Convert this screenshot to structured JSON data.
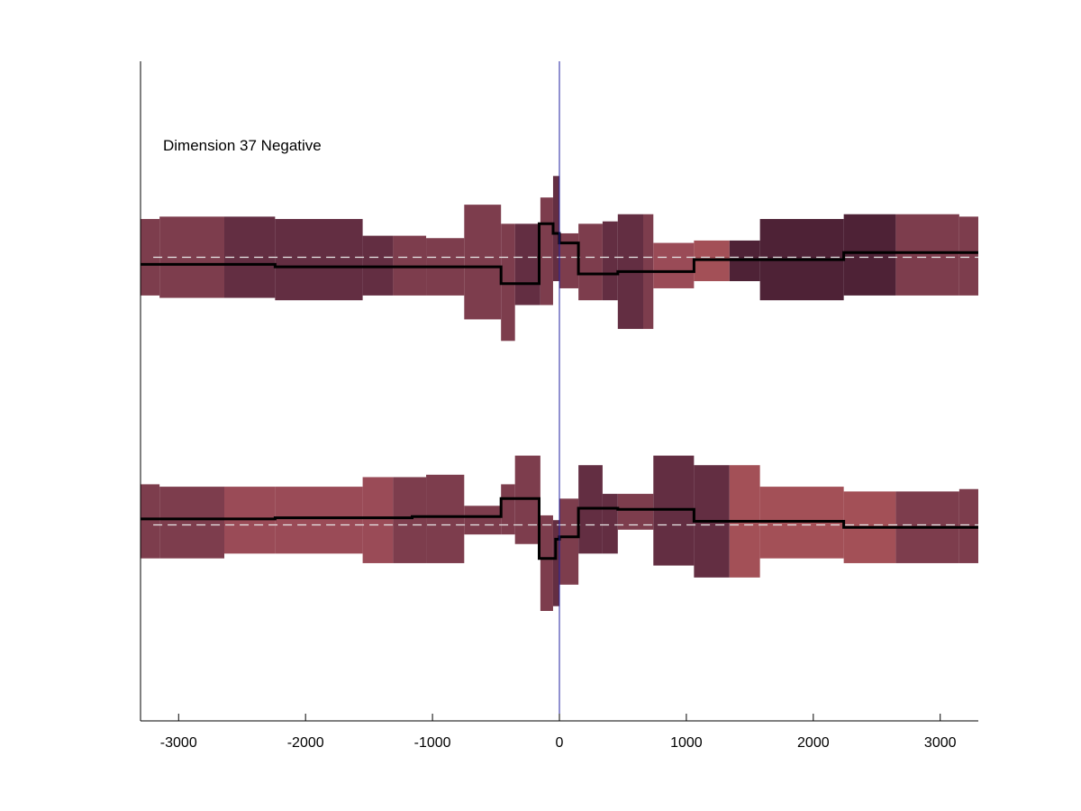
{
  "chart_data": {
    "type": "area",
    "title": "",
    "annotation": "Dimension 37 Negative",
    "xlabel": "",
    "ylabel": "",
    "xlim": [
      -3300,
      3300
    ],
    "xticks": [
      -3000,
      -2000,
      -1000,
      0,
      1000,
      2000,
      3000
    ],
    "xtick_labels": [
      "-3000",
      "-2000",
      "-1000",
      "0",
      "1000",
      "2000",
      "3000"
    ],
    "vertical_line": {
      "x": 0,
      "color": "#2020a0"
    },
    "grid": false,
    "legend": "none",
    "panels": [
      {
        "name": "",
        "baseline": 0,
        "ylim": [
          -5.6,
          8.2
        ],
        "bands": [
          {
            "x0": -3300,
            "x1": -3150,
            "low": -1.6,
            "high": 1.6,
            "color": "#7d3d4d"
          },
          {
            "x0": -3150,
            "x1": -2640,
            "low": -1.7,
            "high": 1.7,
            "color": "#7d3d4d"
          },
          {
            "x0": -2640,
            "x1": -2240,
            "low": -1.7,
            "high": 1.7,
            "color": "#632e42"
          },
          {
            "x0": -2240,
            "x1": -1550,
            "low": -1.8,
            "high": 1.6,
            "color": "#632e42"
          },
          {
            "x0": -1550,
            "x1": -1310,
            "low": -1.6,
            "high": 0.9,
            "color": "#632e42"
          },
          {
            "x0": -1310,
            "x1": -1050,
            "low": -1.6,
            "high": 0.9,
            "color": "#7d3d4d"
          },
          {
            "x0": -1050,
            "x1": -750,
            "low": -1.6,
            "high": 0.8,
            "color": "#7d3d4d"
          },
          {
            "x0": -750,
            "x1": -460,
            "low": -2.6,
            "high": 2.2,
            "color": "#7d3d4d"
          },
          {
            "x0": -460,
            "x1": -350,
            "low": -3.5,
            "high": 1.4,
            "color": "#7d3d4d"
          },
          {
            "x0": -350,
            "x1": -150,
            "low": -2.0,
            "high": 1.4,
            "color": "#632e42"
          },
          {
            "x0": -150,
            "x1": -50,
            "low": -2.0,
            "high": 2.5,
            "color": "#7d3d4d"
          },
          {
            "x0": -50,
            "x1": 0,
            "low": -1.0,
            "high": 3.4,
            "color": "#632e42"
          },
          {
            "x0": 0,
            "x1": 150,
            "low": -1.3,
            "high": 1.0,
            "color": "#7d3d4d"
          },
          {
            "x0": 150,
            "x1": 340,
            "low": -1.8,
            "high": 1.4,
            "color": "#7d3d4d"
          },
          {
            "x0": 340,
            "x1": 460,
            "low": -1.8,
            "high": 1.5,
            "color": "#632e42"
          },
          {
            "x0": 460,
            "x1": 660,
            "low": -3.0,
            "high": 1.8,
            "color": "#632e42"
          },
          {
            "x0": 660,
            "x1": 740,
            "low": -3.0,
            "high": 1.8,
            "color": "#7d3d4d"
          },
          {
            "x0": 740,
            "x1": 1060,
            "low": -1.3,
            "high": 0.6,
            "color": "#9a4b57"
          },
          {
            "x0": 1060,
            "x1": 1340,
            "low": -1.0,
            "high": 0.7,
            "color": "#a35057"
          },
          {
            "x0": 1340,
            "x1": 1580,
            "low": -1.0,
            "high": 0.7,
            "color": "#4e2236"
          },
          {
            "x0": 1580,
            "x1": 2240,
            "low": -1.8,
            "high": 1.6,
            "color": "#4e2236"
          },
          {
            "x0": 2240,
            "x1": 2650,
            "low": -1.6,
            "high": 1.8,
            "color": "#4e2236"
          },
          {
            "x0": 2650,
            "x1": 3150,
            "low": -1.6,
            "high": 1.8,
            "color": "#7d3d4d"
          },
          {
            "x0": 3150,
            "x1": 3300,
            "low": -1.6,
            "high": 1.7,
            "color": "#7d3d4d"
          }
        ],
        "line": {
          "x": [
            -3300,
            -2240,
            -2240,
            -1160,
            -1160,
            -460,
            -460,
            -160,
            -160,
            -50,
            -50,
            0,
            0,
            150,
            150,
            460,
            460,
            1060,
            1060,
            2240,
            2240,
            3300
          ],
          "y": [
            -0.3,
            -0.3,
            -0.4,
            -0.4,
            -0.4,
            -0.4,
            -1.1,
            -1.1,
            1.4,
            1.4,
            1.0,
            1.0,
            0.6,
            0.6,
            -0.7,
            -0.7,
            -0.6,
            -0.6,
            -0.1,
            -0.1,
            0.2,
            0.2
          ]
        }
      },
      {
        "name": "",
        "baseline": 0,
        "ylim": [
          -8.2,
          5.6
        ],
        "bands": [
          {
            "x0": -3300,
            "x1": -3150,
            "low": -1.4,
            "high": 1.7,
            "color": "#7d3d4d"
          },
          {
            "x0": -3150,
            "x1": -2640,
            "low": -1.4,
            "high": 1.6,
            "color": "#7d3d4d"
          },
          {
            "x0": -2640,
            "x1": -2240,
            "low": -1.2,
            "high": 1.6,
            "color": "#9a4b57"
          },
          {
            "x0": -2240,
            "x1": -1550,
            "low": -1.2,
            "high": 1.6,
            "color": "#9a4b57"
          },
          {
            "x0": -1550,
            "x1": -1310,
            "low": -1.6,
            "high": 2.0,
            "color": "#9a4b57"
          },
          {
            "x0": -1310,
            "x1": -1050,
            "low": -1.6,
            "high": 2.0,
            "color": "#7d3d4d"
          },
          {
            "x0": -1050,
            "x1": -750,
            "low": -1.6,
            "high": 2.1,
            "color": "#7d3d4d"
          },
          {
            "x0": -750,
            "x1": -460,
            "low": -0.4,
            "high": 0.8,
            "color": "#7d3d4d"
          },
          {
            "x0": -460,
            "x1": -350,
            "low": -0.4,
            "high": 1.7,
            "color": "#7d3d4d"
          },
          {
            "x0": -350,
            "x1": -150,
            "low": -0.8,
            "high": 2.9,
            "color": "#7d3d4d"
          },
          {
            "x0": -150,
            "x1": -50,
            "low": -3.6,
            "high": 0.4,
            "color": "#7d3d4d"
          },
          {
            "x0": -50,
            "x1": 0,
            "low": -3.4,
            "high": 0.2,
            "color": "#632e42"
          },
          {
            "x0": 0,
            "x1": 150,
            "low": -2.5,
            "high": 1.1,
            "color": "#7d3d4d"
          },
          {
            "x0": 150,
            "x1": 340,
            "low": -1.2,
            "high": 2.5,
            "color": "#632e42"
          },
          {
            "x0": 340,
            "x1": 460,
            "low": -1.2,
            "high": 1.3,
            "color": "#632e42"
          },
          {
            "x0": 460,
            "x1": 660,
            "low": -0.2,
            "high": 1.3,
            "color": "#7d3d4d"
          },
          {
            "x0": 660,
            "x1": 740,
            "low": -0.2,
            "high": 1.3,
            "color": "#7d3d4d"
          },
          {
            "x0": 740,
            "x1": 1060,
            "low": -1.7,
            "high": 2.9,
            "color": "#632e42"
          },
          {
            "x0": 1060,
            "x1": 1340,
            "low": -2.2,
            "high": 2.5,
            "color": "#632e42"
          },
          {
            "x0": 1340,
            "x1": 1580,
            "low": -2.2,
            "high": 2.5,
            "color": "#a35057"
          },
          {
            "x0": 1580,
            "x1": 2240,
            "low": -1.4,
            "high": 1.6,
            "color": "#a35057"
          },
          {
            "x0": 2240,
            "x1": 2650,
            "low": -1.6,
            "high": 1.4,
            "color": "#a35057"
          },
          {
            "x0": 2650,
            "x1": 3150,
            "low": -1.6,
            "high": 1.4,
            "color": "#7d3d4d"
          },
          {
            "x0": 3150,
            "x1": 3300,
            "low": -1.6,
            "high": 1.5,
            "color": "#7d3d4d"
          }
        ],
        "line": {
          "x": [
            -3300,
            -2240,
            -2240,
            -1160,
            -1160,
            -460,
            -460,
            -160,
            -160,
            -30,
            -30,
            0,
            0,
            150,
            150,
            460,
            460,
            1060,
            1060,
            2240,
            2240,
            3300
          ],
          "y": [
            0.25,
            0.25,
            0.3,
            0.3,
            0.35,
            0.35,
            1.1,
            1.1,
            -1.4,
            -1.4,
            -0.6,
            -0.6,
            -0.5,
            -0.5,
            0.7,
            0.7,
            0.65,
            0.65,
            0.15,
            0.15,
            -0.1,
            -0.1
          ]
        }
      }
    ]
  }
}
